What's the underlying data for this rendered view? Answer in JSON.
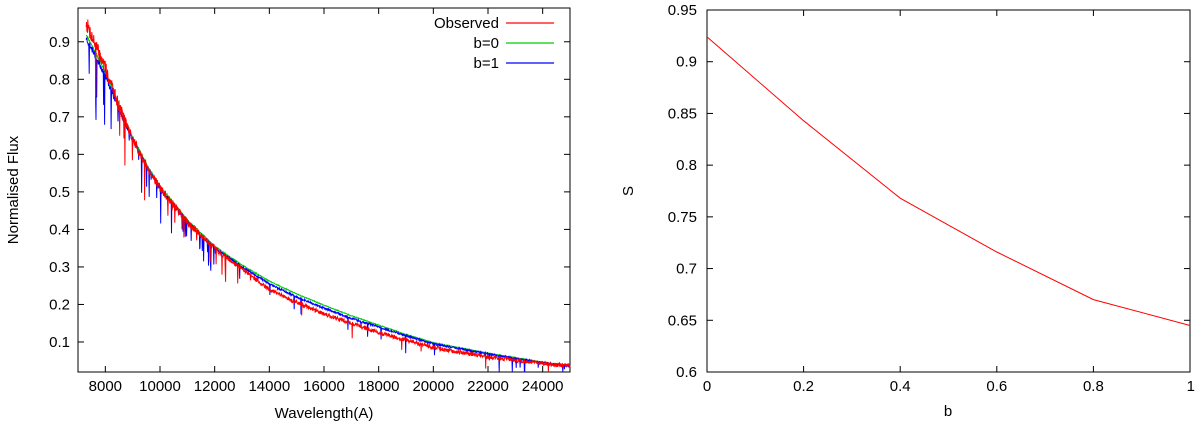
{
  "chart_data": [
    {
      "type": "line",
      "title": "",
      "xlabel": "Wavelength(A)",
      "ylabel": "Normalised Flux",
      "xlim": [
        7000,
        25000
      ],
      "ylim": [
        0.02,
        0.99
      ],
      "grid": false,
      "legend_position": "top-right",
      "xticks": [
        8000,
        10000,
        12000,
        14000,
        16000,
        18000,
        20000,
        22000,
        24000
      ],
      "yticks": [
        0.1,
        0.2,
        0.3,
        0.4,
        0.5,
        0.6,
        0.7,
        0.8,
        0.9
      ],
      "x_anchor": [
        7300,
        8000,
        8500,
        9000,
        9500,
        10000,
        11000,
        12000,
        13000,
        14000,
        15000,
        16000,
        17000,
        18000,
        19000,
        20000,
        22000,
        24000,
        25000
      ],
      "series": [
        {
          "name": "Observed",
          "color": "#ff0000",
          "values": [
            0.95,
            0.83,
            0.73,
            0.64,
            0.57,
            0.51,
            0.42,
            0.35,
            0.295,
            0.24,
            0.205,
            0.175,
            0.15,
            0.125,
            0.105,
            0.085,
            0.06,
            0.043,
            0.036
          ]
        },
        {
          "name": "b=0",
          "color": "#00cc00",
          "values": [
            0.92,
            0.82,
            0.73,
            0.645,
            0.575,
            0.515,
            0.425,
            0.355,
            0.305,
            0.262,
            0.228,
            0.198,
            0.17,
            0.145,
            0.12,
            0.098,
            0.07,
            0.046,
            0.036
          ]
        },
        {
          "name": "b=1",
          "color": "#0000ff",
          "values": [
            0.91,
            0.81,
            0.72,
            0.64,
            0.57,
            0.51,
            0.42,
            0.35,
            0.3,
            0.255,
            0.22,
            0.19,
            0.163,
            0.14,
            0.117,
            0.095,
            0.068,
            0.045,
            0.035
          ]
        }
      ]
    },
    {
      "type": "line",
      "title": "",
      "xlabel": "b",
      "ylabel": "S",
      "xlim": [
        0,
        1
      ],
      "ylim": [
        0.6,
        0.95
      ],
      "grid": false,
      "xticks": [
        0,
        0.2,
        0.4,
        0.6,
        0.8,
        1
      ],
      "xtick_labels": [
        "0",
        "0.2",
        "0.4",
        "0.6",
        "0.8",
        "1"
      ],
      "yticks": [
        0.6,
        0.65,
        0.7,
        0.75,
        0.8,
        0.85,
        0.9,
        0.95
      ],
      "ytick_labels": [
        "0.6",
        "0.65",
        "0.7",
        "0.75",
        "0.8",
        "0.85",
        "0.9",
        "0.95"
      ],
      "series": [
        {
          "name": "S",
          "color": "#ff0000",
          "x": [
            0,
            0.2,
            0.4,
            0.6,
            0.8,
            1.0
          ],
          "values": [
            0.924,
            0.843,
            0.768,
            0.716,
            0.67,
            0.645
          ]
        }
      ]
    }
  ]
}
